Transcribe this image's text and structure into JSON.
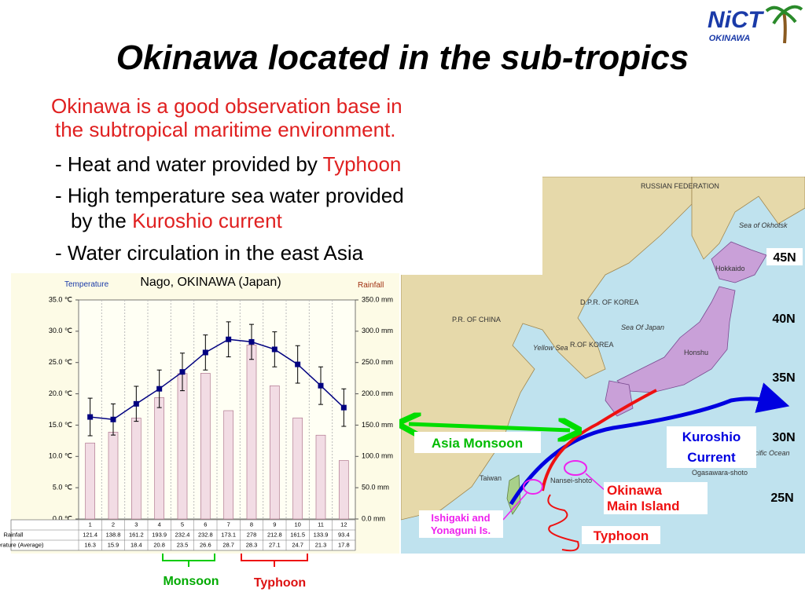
{
  "logo": {
    "name": "NiCT",
    "sub": "OKINAWA"
  },
  "title": "Okinawa located in the sub-tropics",
  "intro": [
    "Okinawa is a good observation base in",
    "the subtropical maritime environment."
  ],
  "bullets": [
    {
      "text": "- Heat and water provided by",
      "highlight": "Typhoon"
    },
    {
      "text": "- High temperature sea water provided",
      "continuation": "by the",
      "highlight": "Kuroshio current"
    },
    {
      "text": "- Water circulation in the east Asia"
    }
  ],
  "chart_data": {
    "type": "combo",
    "title": "Nago, OKINAWA (Japan)",
    "ylabel": "Temperature",
    "y2label": "Rainfall",
    "categories": [
      "1",
      "2",
      "3",
      "4",
      "5",
      "6",
      "7",
      "8",
      "9",
      "10",
      "11",
      "12"
    ],
    "series": [
      {
        "name": "Rainfall",
        "type": "bar",
        "axis": "y2",
        "color": "#f2dce4",
        "edgecolor": "#b07890",
        "values": [
          121.4,
          138.8,
          161.2,
          193.9,
          232.4,
          232.8,
          173.1,
          278,
          212.8,
          161.5,
          133.9,
          93.4
        ]
      },
      {
        "name": "Temperature (Average)",
        "type": "line",
        "color": "#000080",
        "values": [
          16.3,
          15.9,
          18.4,
          20.8,
          23.5,
          26.6,
          28.7,
          28.3,
          27.1,
          24.7,
          21.3,
          17.8
        ],
        "errors": [
          3,
          2.5,
          2.8,
          3,
          3,
          2.8,
          2.8,
          2.8,
          2.8,
          3,
          3,
          3
        ]
      }
    ],
    "ylim": [
      0,
      35
    ],
    "yticks": [
      {
        "value": 0,
        "label": "0.0 ℃"
      },
      {
        "value": 5,
        "label": "5.0 ℃"
      },
      {
        "value": 10,
        "label": "10.0 ℃"
      },
      {
        "value": 15,
        "label": "15.0 ℃"
      },
      {
        "value": 20,
        "label": "20.0 ℃"
      },
      {
        "value": 25,
        "label": "25.0 ℃"
      },
      {
        "value": 30,
        "label": "30.0 ℃"
      },
      {
        "value": 35,
        "label": "35.0 ℃"
      }
    ],
    "y2lim": [
      0,
      350
    ],
    "y2ticks": [
      {
        "value": 0,
        "label": "0.0 mm"
      },
      {
        "value": 50,
        "label": "50.0 mm"
      },
      {
        "value": 100,
        "label": "100.0 mm"
      },
      {
        "value": 150,
        "label": "150.0 mm"
      },
      {
        "value": 200,
        "label": "200.0 mm"
      },
      {
        "value": 250,
        "label": "250.0 mm"
      },
      {
        "value": 300,
        "label": "300.0 mm"
      },
      {
        "value": 350,
        "label": "350.0 mm"
      }
    ]
  },
  "seasons": {
    "monsoon": "Monsoon",
    "typhoon": "Typhoon"
  },
  "map": {
    "places": [
      "RUSSIAN FEDERATION",
      "Sea of Okhotsk",
      "Hokkaido",
      "D.P.R. OF KOREA",
      "P.R. OF CHINA",
      "Sea Of Japan",
      "R.OF KOREA",
      "Yellow Sea",
      "Honshu",
      "Taiwan",
      "Nansei-shoto",
      "Ogasawara-shoto",
      "cific Ocean"
    ],
    "latitudes": [
      "45N",
      "40N",
      "35N",
      "30N",
      "25N"
    ],
    "annotations": {
      "monsoon": "Asia Monsoon",
      "current": [
        "Kuroshio",
        "Current"
      ],
      "okinawa": [
        "Okinawa",
        "Main Island"
      ],
      "islands": [
        "Ishigaki and",
        "Yonaguni Is."
      ],
      "typhoon": "Typhoon"
    }
  }
}
